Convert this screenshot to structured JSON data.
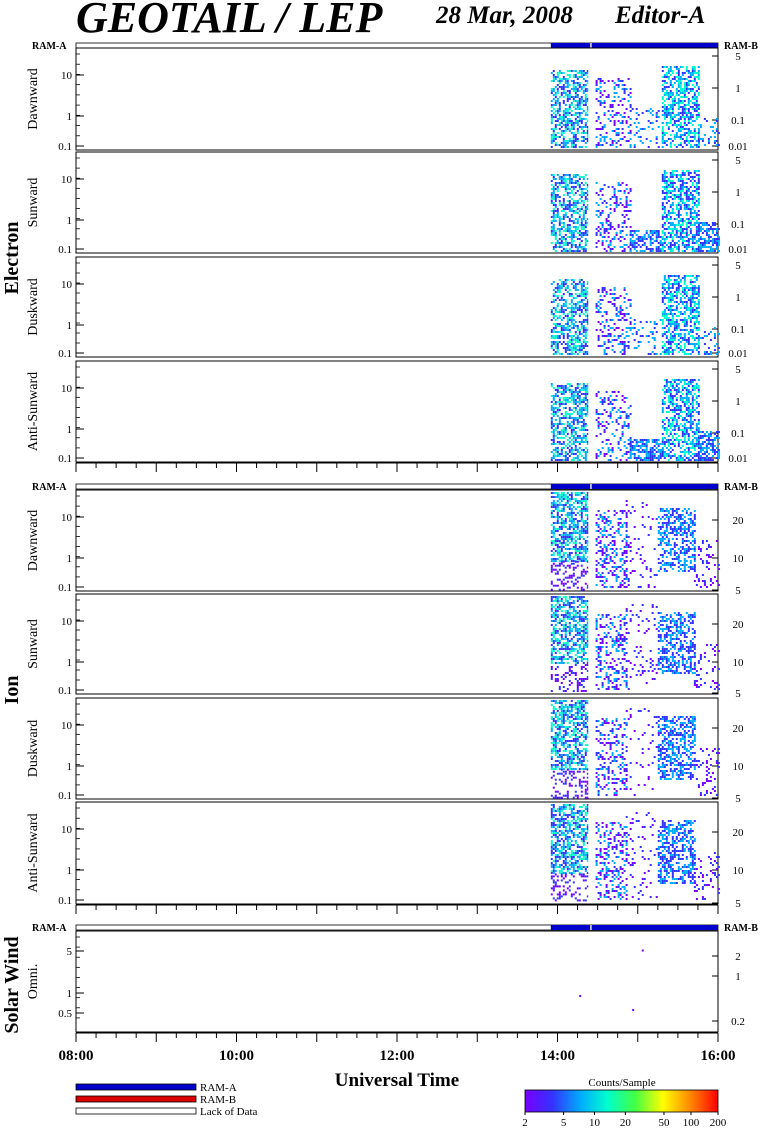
{
  "header": {
    "instrument": "GEOTAIL / LEP",
    "date": "28 Mar, 2008",
    "editor": "Editor-A"
  },
  "chart_data": {
    "type": "heatmap",
    "xlabel": "Universal Time",
    "x_ticks": [
      "08:00",
      "10:00",
      "12:00",
      "14:00",
      "16:00"
    ],
    "x_range": [
      "08:00",
      "16:00"
    ],
    "data_start": "13:55",
    "data_gap": [
      "14:23",
      "14:27"
    ],
    "ram_labels": {
      "left": "RAM-A",
      "right": "RAM-B"
    },
    "groups": [
      {
        "name": "Electron",
        "panels": [
          "Dawnward",
          "Sunward",
          "Duskward",
          "Anti-Sunward"
        ],
        "left_ticks": [
          "10",
          "1",
          "0.1"
        ],
        "right_ticks": [
          "5",
          "1",
          "0.1",
          "0.01"
        ]
      },
      {
        "name": "Ion",
        "panels": [
          "Dawnward",
          "Sunward",
          "Duskward",
          "Anti-Sunward"
        ],
        "left_ticks": [
          "10",
          "1",
          "0.1"
        ],
        "right_ticks": [
          "20",
          "10",
          "5"
        ]
      },
      {
        "name": "Solar Wind",
        "panels": [
          "Omni."
        ],
        "left_ticks": [
          "5",
          "1",
          "0.5"
        ],
        "right_ticks": [
          "2",
          "1",
          "0.2"
        ]
      }
    ],
    "legend": {
      "items": [
        {
          "label": "RAM-A",
          "color": "#0000cc"
        },
        {
          "label": "RAM-B",
          "color": "#dd0000"
        },
        {
          "label": "Lack of Data",
          "color": "#ffffff"
        }
      ]
    },
    "colorbar": {
      "title": "Counts/Sample",
      "ticks": [
        "2",
        "5",
        "10",
        "20",
        "50",
        "100",
        "200"
      ],
      "colors": [
        "#7700ff",
        "#3333ff",
        "#00aaff",
        "#00ffcc",
        "#44ff44",
        "#ffff00",
        "#ff8800",
        "#ff0000"
      ]
    }
  }
}
